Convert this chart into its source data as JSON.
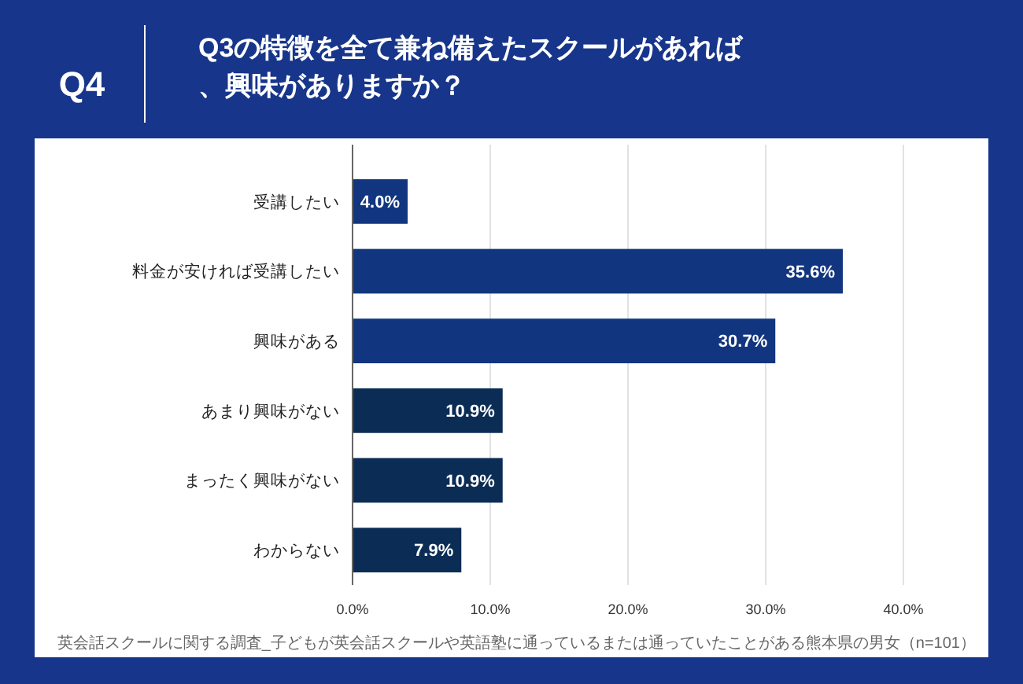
{
  "chart_data": {
    "type": "bar",
    "orientation": "horizontal",
    "subtitle": "Q4",
    "title": "Q3の特徴を全て兼ね備えたスクールがあれば、興味がありますか？",
    "categories": [
      "受講したい",
      "料金が安ければ受講したい",
      "興味がある",
      "あまり興味がない",
      "まったく興味がない",
      "わからない"
    ],
    "values": [
      4.0,
      35.6,
      30.7,
      10.9,
      10.9,
      7.9
    ],
    "colors": [
      "#12357f",
      "#12357f",
      "#12357f",
      "#0b2c55",
      "#0b2c55",
      "#0b2c55"
    ],
    "value_labels": [
      "4.0%",
      "35.6%",
      "30.7%",
      "10.9%",
      "10.9%",
      "7.9%"
    ],
    "xlim": [
      0,
      40
    ],
    "xticks": [
      {
        "value": 0,
        "label": "0.0%"
      },
      {
        "value": 10,
        "label": "10.0%"
      },
      {
        "value": 20,
        "label": "20.0%"
      },
      {
        "value": 30,
        "label": "30.0%"
      },
      {
        "value": 40,
        "label": "40.0%"
      }
    ],
    "grid": "x",
    "annotations": [
      "英会話スクールに関する調査_子どもが英会話スクールや英語塾に通っているまたは通っていたことがある熊本県の男女（n=101）"
    ]
  }
}
